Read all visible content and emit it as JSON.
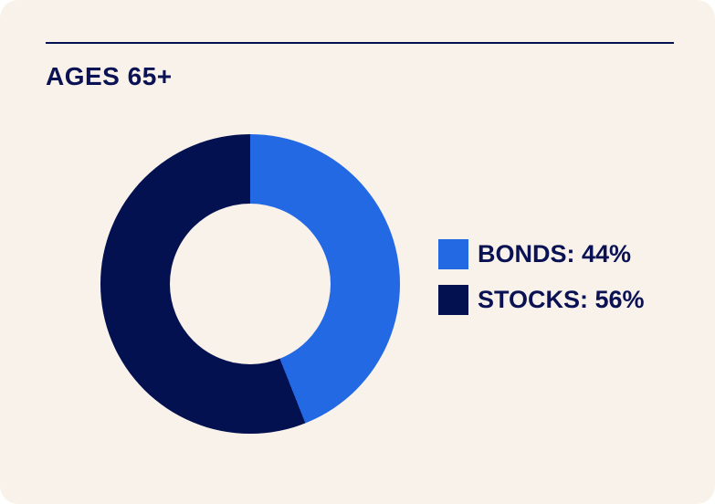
{
  "card": {
    "title": "AGES 65+"
  },
  "colors": {
    "background": "#F8F2EA",
    "navy": "#041150",
    "blue": "#2269E3",
    "text_navy": "#0A1254"
  },
  "chart_data": {
    "type": "pie",
    "donut": true,
    "title": "AGES 65+",
    "categories": [
      "BONDS",
      "STOCKS"
    ],
    "values": [
      44,
      56
    ],
    "colors": [
      "#2269E3",
      "#041150"
    ],
    "start_angle_deg": 0,
    "direction": "clockwise",
    "inner_radius_ratio": 0.54,
    "legend_position": "right",
    "legend": [
      {
        "label": "BONDS: 44%",
        "color": "#2269E3"
      },
      {
        "label": "STOCKS: 56%",
        "color": "#041150"
      }
    ]
  }
}
